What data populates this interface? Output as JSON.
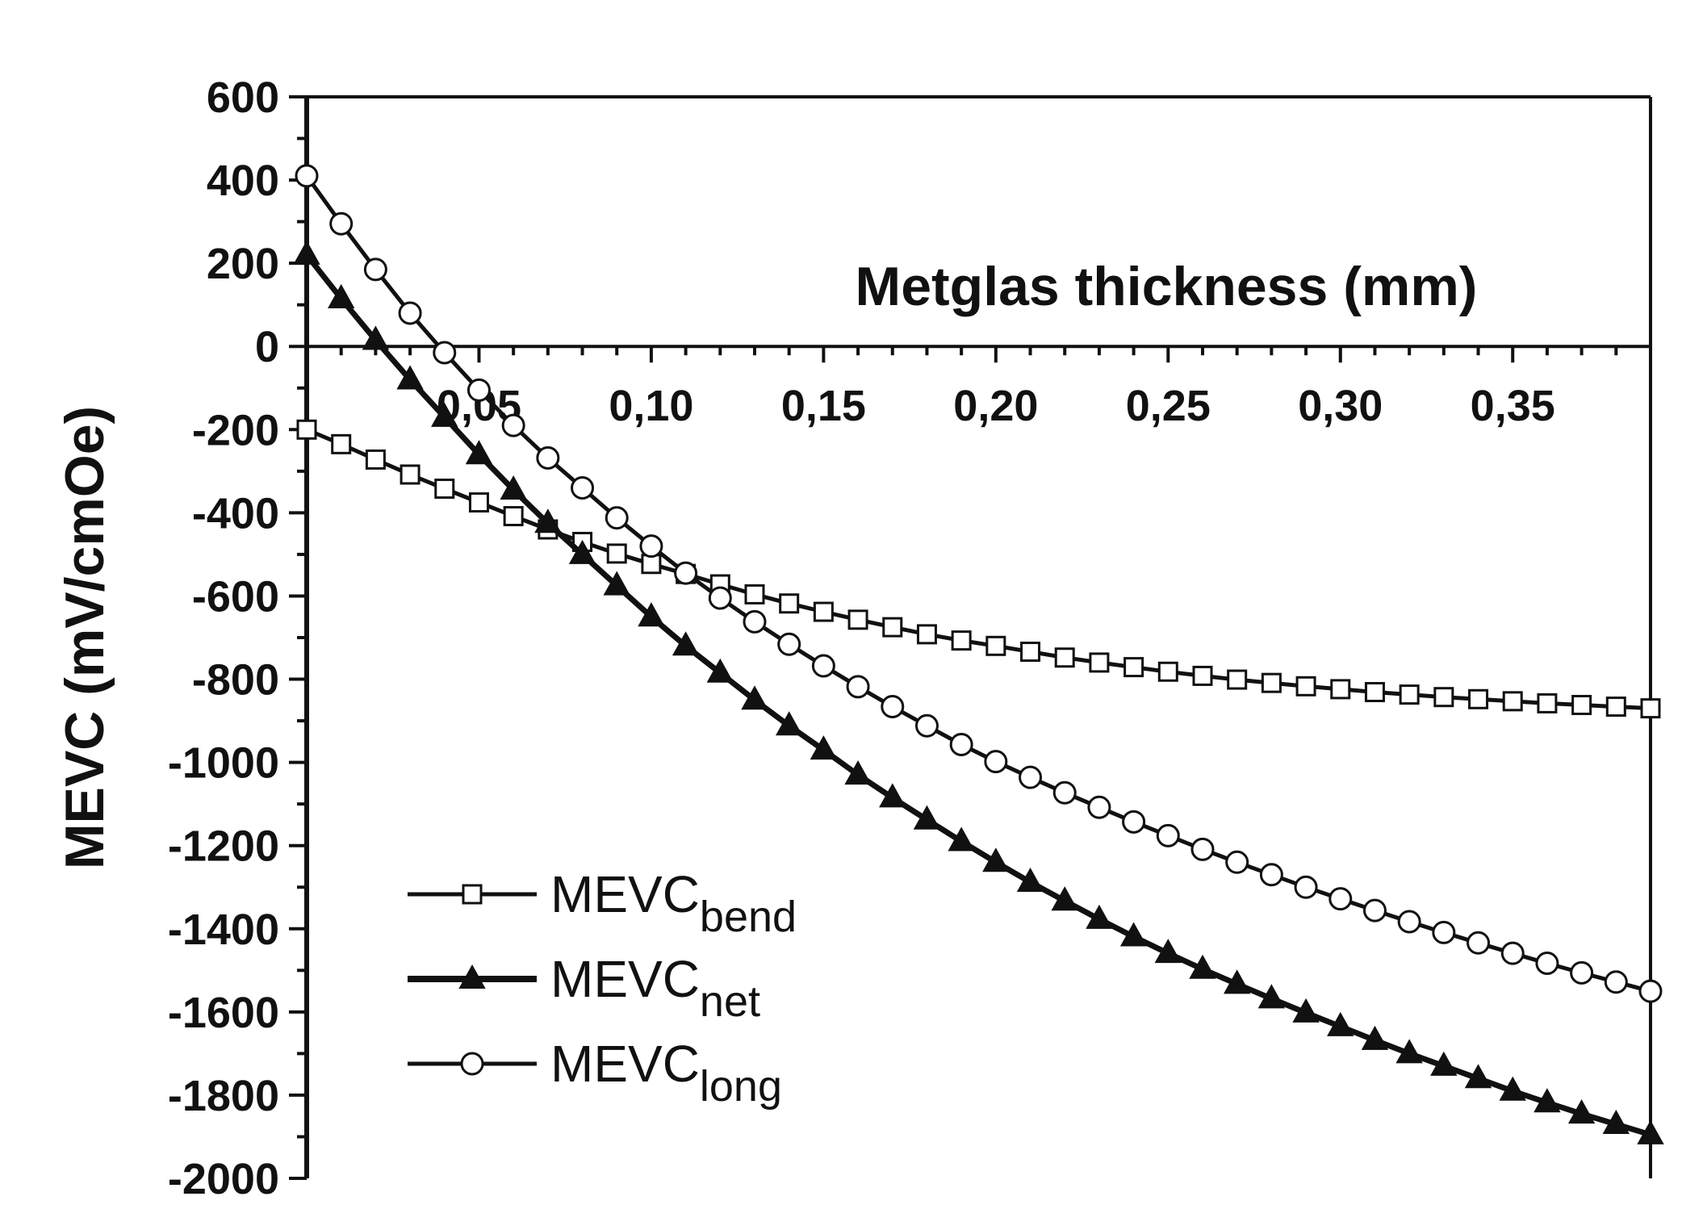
{
  "chart_data": {
    "type": "line",
    "title": "",
    "xlabel": "Metglas thickness (mm)",
    "ylabel": "MEVC (mV/cmOe)",
    "xlim": [
      0.0,
      0.39
    ],
    "ylim": [
      -2000,
      600
    ],
    "xticks": [
      0.05,
      0.1,
      0.15,
      0.2,
      0.25,
      0.3,
      0.35
    ],
    "xtick_labels": [
      "0,05",
      "0,10",
      "0,15",
      "0,20",
      "0,25",
      "0,30",
      "0,35"
    ],
    "yticks": [
      600,
      400,
      200,
      0,
      -200,
      -400,
      -600,
      -800,
      -1000,
      -1200,
      -1400,
      -1600,
      -1800,
      -2000
    ],
    "ytick_labels": [
      "600",
      "400",
      "200",
      "0",
      "-200",
      "-400",
      "-600",
      "-800",
      "-1000",
      "-1200",
      "-1400",
      "-1600",
      "-1800",
      "-2000"
    ],
    "grid": false,
    "legend_position": "bottom-left",
    "x": [
      0.0,
      0.01,
      0.02,
      0.03,
      0.04,
      0.05,
      0.06,
      0.07,
      0.08,
      0.09,
      0.1,
      0.11,
      0.12,
      0.13,
      0.14,
      0.15,
      0.16,
      0.17,
      0.18,
      0.19,
      0.2,
      0.21,
      0.22,
      0.23,
      0.24,
      0.25,
      0.26,
      0.27,
      0.28,
      0.29,
      0.3,
      0.31,
      0.32,
      0.33,
      0.34,
      0.35,
      0.36,
      0.37,
      0.38,
      0.39
    ],
    "series": [
      {
        "name": "MEVC",
        "name_subscript": "bend",
        "marker": "square-open",
        "values": [
          -200,
          -235,
          -272,
          -308,
          -342,
          -375,
          -408,
          -440,
          -470,
          -498,
          -523,
          -547,
          -572,
          -596,
          -618,
          -638,
          -657,
          -675,
          -692,
          -707,
          -720,
          -734,
          -748,
          -760,
          -771,
          -782,
          -792,
          -801,
          -809,
          -817,
          -824,
          -831,
          -837,
          -843,
          -848,
          -853,
          -858,
          -862,
          -866,
          -870
        ]
      },
      {
        "name": "MEVC",
        "name_subscript": "net",
        "marker": "triangle-filled",
        "values": [
          220,
          115,
          15,
          -80,
          -170,
          -260,
          -345,
          -425,
          -500,
          -575,
          -650,
          -720,
          -785,
          -850,
          -912,
          -970,
          -1030,
          -1085,
          -1138,
          -1190,
          -1240,
          -1288,
          -1333,
          -1377,
          -1419,
          -1459,
          -1497,
          -1533,
          -1568,
          -1602,
          -1635,
          -1668,
          -1700,
          -1730,
          -1760,
          -1790,
          -1818,
          -1845,
          -1870,
          -1895
        ]
      },
      {
        "name": "MEVC",
        "name_subscript": "long",
        "marker": "circle-open",
        "values": [
          410,
          295,
          185,
          80,
          -15,
          -105,
          -190,
          -268,
          -340,
          -412,
          -480,
          -545,
          -605,
          -662,
          -716,
          -768,
          -818,
          -866,
          -912,
          -957,
          -998,
          -1036,
          -1073,
          -1108,
          -1143,
          -1176,
          -1209,
          -1240,
          -1270,
          -1300,
          -1328,
          -1356,
          -1383,
          -1409,
          -1434,
          -1459,
          -1483,
          -1506,
          -1528,
          -1550
        ]
      }
    ]
  }
}
